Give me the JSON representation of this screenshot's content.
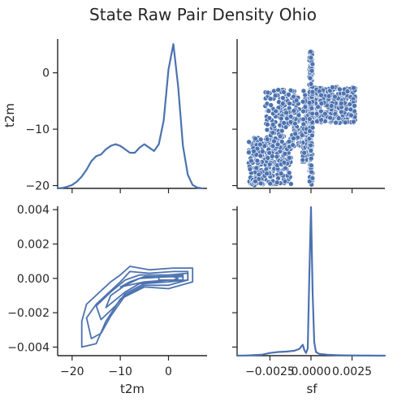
{
  "chart_data": {
    "type": "pairplot",
    "title": "State Raw Pair Density Ohio",
    "variables": [
      "t2m",
      "sf"
    ],
    "colors": {
      "series": "#4c72b0",
      "axis": "#262626",
      "background": "#ffffff"
    },
    "xlabels": [
      "t2m",
      "sf"
    ],
    "ylabels": [
      "t2m",
      ""
    ],
    "panels": [
      {
        "id": "t2m-kde",
        "type": "line",
        "x_var": "t2m",
        "xlim": [
          -23,
          8
        ],
        "ylim": [
          0,
          0.088
        ],
        "x": [
          -23,
          -22,
          -21,
          -20,
          -19,
          -18,
          -17,
          -16,
          -15,
          -14,
          -13,
          -12,
          -11,
          -10,
          -9,
          -8,
          -7,
          -6,
          -5,
          -4,
          -3,
          -2,
          -1,
          0,
          1,
          2,
          3,
          4,
          5,
          6,
          7
        ],
        "y": [
          0,
          0.0003,
          0.001,
          0.002,
          0.004,
          0.007,
          0.011,
          0.016,
          0.019,
          0.02,
          0.023,
          0.025,
          0.026,
          0.025,
          0.023,
          0.021,
          0.021,
          0.024,
          0.026,
          0.024,
          0.022,
          0.026,
          0.04,
          0.07,
          0.085,
          0.06,
          0.025,
          0.008,
          0.002,
          0.0005,
          0
        ]
      },
      {
        "id": "sf-vs-t2m-scatter",
        "type": "scatter",
        "x_var": "sf",
        "y_var": "t2m",
        "xlim": [
          -0.0045,
          0.0045
        ],
        "ylim": [
          -20.5,
          6
        ],
        "yticks": [
          0,
          -10,
          -20
        ],
        "ytick_labels": [
          "0",
          "−10",
          "−20"
        ],
        "clusters": [
          {
            "x": [
              -0.0038,
              -0.0012
            ],
            "y": [
              -20,
              -11.5
            ],
            "n": 260
          },
          {
            "x": [
              -0.0028,
              0.0
            ],
            "y": [
              -13,
              -3
            ],
            "n": 260
          },
          {
            "x": [
              -0.0006,
              0.0
            ],
            "y": [
              -16,
              -6
            ],
            "n": 120
          },
          {
            "x": [
              0.0,
              0.0027
            ],
            "y": [
              -9,
              -2.5
            ],
            "n": 320
          },
          {
            "x": [
              -0.0001,
              0.0001
            ],
            "y": [
              -20,
              4
            ],
            "n": 160
          }
        ]
      },
      {
        "id": "t2m-vs-sf-kde-contour",
        "type": "contour",
        "x_var": "t2m",
        "y_var": "sf",
        "xlim": [
          -23,
          8
        ],
        "ylim": [
          -0.0045,
          0.0042
        ],
        "xticks": [
          -20,
          -10,
          0
        ],
        "xtick_labels": [
          "−20",
          "−10",
          "0"
        ],
        "yticks": [
          0.004,
          0.002,
          0.0,
          -0.002,
          -0.004
        ],
        "ytick_labels": [
          "0.004",
          "0.002",
          "0.000",
          "−0.002",
          "−0.004"
        ],
        "levels": [
          [
            [
              -18,
              -0.004
            ],
            [
              -18,
              -0.0025
            ],
            [
              -17,
              -0.0015
            ],
            [
              -12,
              -0.0002
            ],
            [
              -10,
              0.0002
            ],
            [
              -8,
              0.0007
            ],
            [
              -4,
              0.0005
            ],
            [
              1,
              0.0006
            ],
            [
              5,
              0.0006
            ],
            [
              5,
              -0.0002
            ],
            [
              0,
              -0.0006
            ],
            [
              -5,
              -0.0005
            ],
            [
              -10,
              -0.0012
            ],
            [
              -13,
              -0.0025
            ],
            [
              -15,
              -0.0038
            ]
          ],
          [
            [
              -16,
              -0.0035
            ],
            [
              -17,
              -0.0023
            ],
            [
              -15,
              -0.0015
            ],
            [
              -10,
              -0.0002
            ],
            [
              -8,
              0.0004
            ],
            [
              -4,
              0.0003
            ],
            [
              1,
              0.0004
            ],
            [
              4,
              0.0004
            ],
            [
              4,
              -0.0001
            ],
            [
              0,
              -0.0004
            ],
            [
              -5,
              -0.0004
            ],
            [
              -9,
              -0.001
            ],
            [
              -12,
              -0.0022
            ],
            [
              -14,
              -0.0032
            ]
          ],
          [
            [
              -14,
              -0.0024
            ],
            [
              -15,
              -0.0016
            ],
            [
              -12,
              -0.0008
            ],
            [
              -9,
              -0.0001
            ],
            [
              -6,
              0.0002
            ],
            [
              0,
              0.0002
            ],
            [
              4,
              0.0003
            ],
            [
              4,
              -0.0001
            ],
            [
              0,
              -0.0002
            ],
            [
              -5,
              -0.0003
            ],
            [
              -9,
              -0.0009
            ],
            [
              -11,
              -0.0016
            ]
          ],
          [
            [
              -13,
              -0.0017
            ],
            [
              -12,
              -0.001
            ],
            [
              -9,
              -0.0004
            ],
            [
              -6,
              0.0
            ],
            [
              0,
              0.0001
            ],
            [
              3,
              0.0002
            ],
            [
              3,
              -0.0001
            ],
            [
              0,
              -0.0001
            ],
            [
              -6,
              -0.0003
            ],
            [
              -9,
              -0.0008
            ]
          ],
          [
            [
              -10,
              -0.0005
            ],
            [
              -8,
              -0.0002
            ],
            [
              -5,
              0.0001
            ],
            [
              0,
              0.0001
            ],
            [
              3,
              0.0001
            ],
            [
              3,
              -0.0001
            ],
            [
              0,
              -0.0001
            ],
            [
              -5,
              -0.0002
            ]
          ],
          [
            [
              -2,
              0.0001
            ],
            [
              1,
              0.0001
            ],
            [
              2,
              0.0
            ],
            [
              1,
              -0.0001
            ],
            [
              -2,
              -0.0001
            ]
          ]
        ]
      },
      {
        "id": "sf-kde",
        "type": "line",
        "x_var": "sf",
        "xlim": [
          -0.0045,
          0.0045
        ],
        "ylim": [
          0,
          1650
        ],
        "xticks": [
          -0.0025,
          0.0,
          0.0025
        ],
        "xtick_labels": [
          "−0.0025",
          "0.0000",
          "0.0025"
        ],
        "x": [
          -0.0045,
          -0.004,
          -0.0035,
          -0.003,
          -0.0025,
          -0.002,
          -0.0015,
          -0.001,
          -0.0007,
          -0.0005,
          -0.0004,
          -0.0003,
          -0.0002,
          -0.0001,
          0.0,
          0.0001,
          0.0002,
          0.0003,
          0.0005,
          0.001,
          0.0015,
          0.002,
          0.0025,
          0.003,
          0.0035,
          0.004,
          0.0045
        ],
        "y": [
          0,
          2,
          5,
          10,
          30,
          40,
          45,
          55,
          75,
          120,
          60,
          30,
          80,
          900,
          1640,
          700,
          150,
          40,
          20,
          10,
          6,
          4,
          3,
          2,
          1,
          0,
          0
        ]
      }
    ]
  }
}
